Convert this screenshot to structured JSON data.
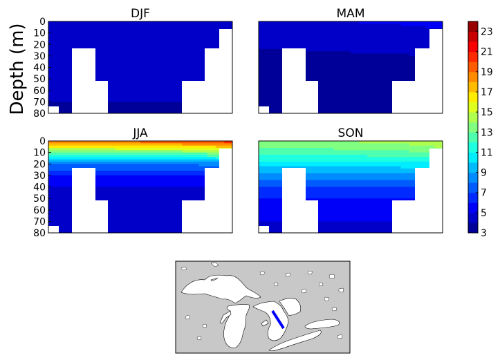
{
  "figure": {
    "ylabel": "Depth (m)",
    "map_label": "Great Lakes location map with transect"
  },
  "colors": {
    "lake": "#ffffff",
    "land": "#c8c8c8",
    "transect": "#0000ff",
    "coast": "#000000"
  },
  "chart_data": [
    {
      "type": "heatmap",
      "title": "DJF",
      "ylabel": "Depth (m)",
      "y_ticks": [
        0,
        10,
        20,
        30,
        40,
        50,
        60,
        70,
        80
      ],
      "ylim": [
        80,
        0
      ],
      "x_ticks": [],
      "depth_profile": {
        "depths": [
          0,
          10,
          20,
          30,
          40,
          50,
          60,
          70,
          80
        ],
        "temperature_C": [
          4.6,
          4.6,
          4.5,
          4.4,
          4.3,
          4.2,
          4.1,
          4.0,
          3.8
        ]
      }
    },
    {
      "type": "heatmap",
      "title": "MAM",
      "y_ticks": [
        0,
        10,
        20,
        30,
        40,
        50,
        60,
        70,
        80
      ],
      "ylim": [
        80,
        0
      ],
      "x_ticks": [],
      "depth_profile": {
        "depths": [
          0,
          10,
          20,
          30,
          40,
          50,
          60,
          70,
          80
        ],
        "temperature_C": [
          5.0,
          4.6,
          4.2,
          4.0,
          3.9,
          3.8,
          3.7,
          3.6,
          3.5
        ]
      }
    },
    {
      "type": "heatmap",
      "title": "JJA",
      "y_ticks": [
        0,
        10,
        20,
        30,
        40,
        50,
        60,
        70,
        80
      ],
      "ylim": [
        80,
        0
      ],
      "x_ticks": [],
      "depth_profile": {
        "depths": [
          0,
          10,
          20,
          30,
          40,
          50,
          60,
          70,
          80
        ],
        "temperature_C": [
          19.5,
          13.0,
          8.0,
          6.0,
          5.0,
          4.5,
          4.3,
          4.1,
          4.0
        ]
      }
    },
    {
      "type": "heatmap",
      "title": "SON",
      "y_ticks": [
        0,
        10,
        20,
        30,
        40,
        50,
        60,
        70,
        80
      ],
      "ylim": [
        80,
        0
      ],
      "x_ticks": [],
      "depth_profile": {
        "depths": [
          0,
          10,
          20,
          30,
          40,
          50,
          60,
          70,
          80
        ],
        "temperature_C": [
          14.0,
          12.5,
          10.5,
          8.5,
          7.0,
          6.0,
          5.5,
          5.0,
          4.8
        ]
      }
    }
  ],
  "colorbar": {
    "min": 3,
    "max": 24,
    "ticks": [
      3,
      5,
      7,
      9,
      11,
      13,
      15,
      17,
      19,
      21,
      23
    ]
  }
}
